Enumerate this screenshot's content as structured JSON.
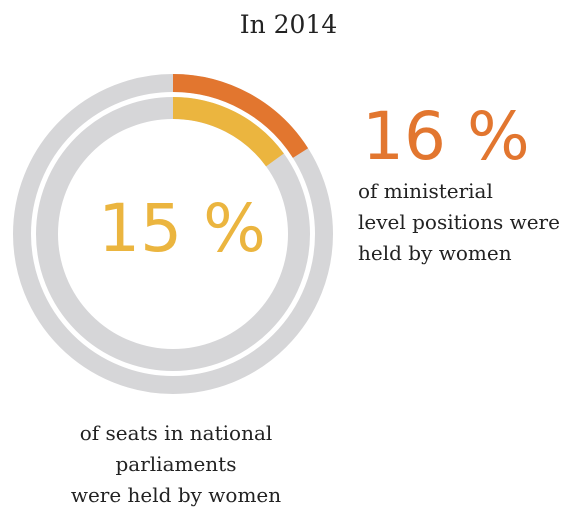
{
  "title": "In 2014",
  "colors": {
    "track": "#d6d6d8",
    "outer": "#e2762f",
    "inner": "#ebb53f",
    "text": "#222222"
  },
  "chart_data": {
    "type": "donut",
    "title": "In 2014",
    "rings": [
      {
        "ring": "outer",
        "value": 16,
        "unit": "%",
        "label": "16 %",
        "description": [
          "of ministerial",
          "level positions were",
          "held by women"
        ]
      },
      {
        "ring": "inner",
        "value": 15,
        "unit": "%",
        "label": "15 %",
        "description": [
          "of seats in national",
          "parliaments",
          "were held by women"
        ]
      }
    ]
  }
}
